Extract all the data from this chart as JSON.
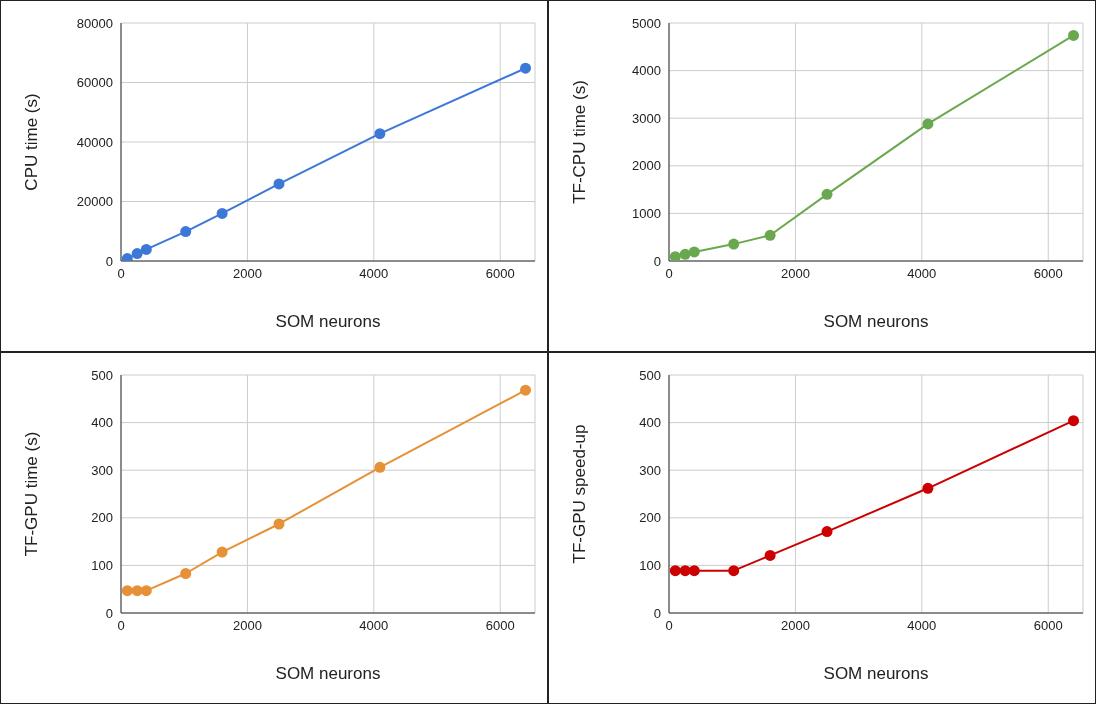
{
  "chart_data": [
    {
      "type": "line",
      "xlabel": "SOM neurons",
      "ylabel": "CPU time (s)",
      "x": [
        100,
        256,
        400,
        1024,
        1600,
        2500,
        4096,
        6400
      ],
      "series": [
        {
          "color": "#3c78d8",
          "values": [
            800,
            2500,
            3900,
            9900,
            16000,
            25900,
            42800,
            64800
          ]
        }
      ],
      "xlim": [
        0,
        6550
      ],
      "xticks": [
        0,
        2000,
        4000,
        6000
      ],
      "ylim": [
        0,
        80000
      ],
      "yticks": [
        0,
        20000,
        40000,
        60000,
        80000
      ],
      "grid": true,
      "legend": false,
      "marker": "circle",
      "line_style": "solid"
    },
    {
      "type": "line",
      "xlabel": "SOM neurons",
      "ylabel": "TF-CPU time (s)",
      "x": [
        100,
        256,
        400,
        1024,
        1600,
        2500,
        4096,
        6400
      ],
      "series": [
        {
          "color": "#6aa84f",
          "values": [
            90,
            140,
            190,
            355,
            540,
            1400,
            2880,
            4740
          ]
        }
      ],
      "xlim": [
        0,
        6550
      ],
      "xticks": [
        0,
        2000,
        4000,
        6000
      ],
      "ylim": [
        0,
        5000
      ],
      "yticks": [
        0,
        1000,
        2000,
        3000,
        4000,
        5000
      ],
      "grid": true,
      "legend": false,
      "marker": "circle",
      "line_style": "solid"
    },
    {
      "type": "line",
      "xlabel": "SOM neurons",
      "ylabel": "TF-GPU time (s)",
      "x": [
        100,
        256,
        400,
        1024,
        1600,
        2500,
        4096,
        6400
      ],
      "series": [
        {
          "color": "#e69138",
          "values": [
            47,
            47,
            47,
            83,
            128,
            187,
            306,
            468
          ]
        }
      ],
      "xlim": [
        0,
        6550
      ],
      "xticks": [
        0,
        2000,
        4000,
        6000
      ],
      "ylim": [
        0,
        500
      ],
      "yticks": [
        0,
        100,
        200,
        300,
        400,
        500
      ],
      "grid": true,
      "legend": false,
      "marker": "circle",
      "line_style": "solid"
    },
    {
      "type": "line",
      "xlabel": "SOM neurons",
      "ylabel": "TF-GPU speed-up",
      "x": [
        100,
        256,
        400,
        1024,
        1600,
        2500,
        4096,
        6400
      ],
      "series": [
        {
          "color": "#cc0000",
          "values": [
            89,
            89,
            89,
            89,
            121,
            171,
            262,
            404
          ]
        }
      ],
      "xlim": [
        0,
        6550
      ],
      "xticks": [
        0,
        2000,
        4000,
        6000
      ],
      "ylim": [
        0,
        500
      ],
      "yticks": [
        0,
        100,
        200,
        300,
        400,
        500
      ],
      "grid": true,
      "legend": false,
      "marker": "circle",
      "line_style": "solid"
    }
  ]
}
